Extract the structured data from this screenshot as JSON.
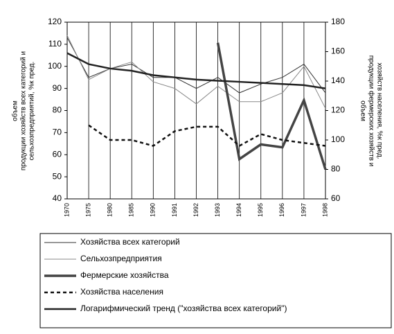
{
  "chart_data": {
    "type": "line",
    "y_label": [
      "объем",
      "продукции хозяйств всех категорий и",
      "сельхозпредприятий, %к пред."
    ],
    "y2_label": [
      "объем",
      "продукции фермерских хозяйств и",
      "хозяйств населения, %к пред."
    ],
    "categories": [
      "1970",
      "1975",
      "1980",
      "1985",
      "1990",
      "1991",
      "1992",
      "1993",
      "1994",
      "1995",
      "1996",
      "1997",
      "1998"
    ],
    "ylim": [
      40,
      120
    ],
    "yticks": [
      40,
      50,
      60,
      70,
      80,
      90,
      100,
      110,
      120
    ],
    "y2lim": [
      60,
      180
    ],
    "y2ticks": [
      60,
      80,
      100,
      120,
      140,
      160,
      180
    ],
    "grid": true,
    "series": [
      {
        "name": "Хозяйства всех категорий",
        "color": "#333333",
        "style": "solid",
        "width": 1,
        "values": [
          113,
          95,
          99,
          101,
          95,
          95,
          90,
          95,
          88,
          92,
          95,
          101,
          88
        ]
      },
      {
        "name": "Сельхозпредприятия",
        "color": "#888888",
        "style": "solid",
        "width": 1,
        "values": [
          114,
          94,
          99,
          102,
          93,
          90,
          83,
          91,
          84,
          84,
          88,
          100,
          81
        ]
      },
      {
        "name": "Фермерские хозяйства",
        "color": "#444444",
        "style": "solid",
        "width": 3.5,
        "axis": "y2",
        "values": [
          null,
          null,
          null,
          null,
          null,
          null,
          null,
          166,
          87,
          97,
          95,
          127,
          80
        ]
      },
      {
        "name": "Хозяйства населения",
        "color": "#111111",
        "style": "dashed",
        "width": 2.5,
        "axis": "y2",
        "values": [
          null,
          110,
          100,
          100,
          96,
          106,
          109,
          109,
          96,
          104,
          100,
          98,
          96
        ]
      },
      {
        "name": "Логарифмический тренд (\"хозяйства всех категорий\")",
        "color": "#222222",
        "style": "solid",
        "width": 2.5,
        "values": [
          106,
          101,
          99,
          98,
          96,
          95,
          94,
          93.5,
          93,
          92.5,
          92,
          91.5,
          90
        ]
      }
    ]
  }
}
